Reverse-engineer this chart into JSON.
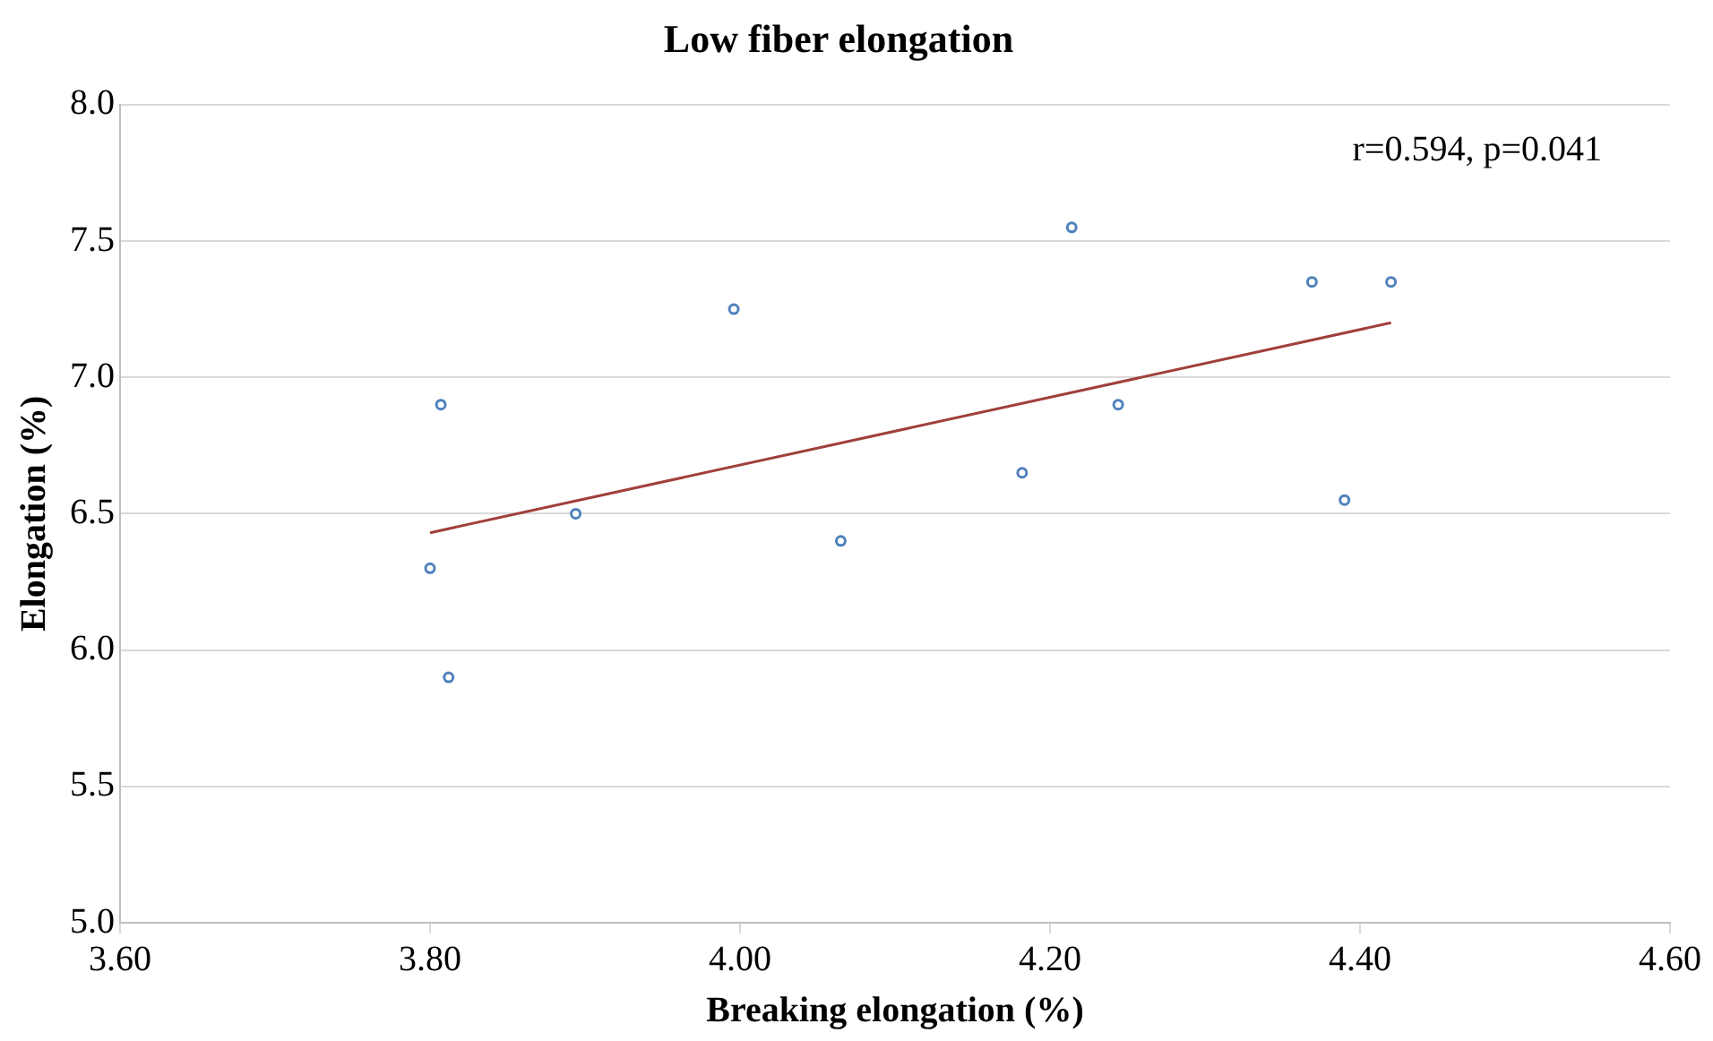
{
  "chart_data": {
    "type": "scatter",
    "title": "Low fiber elongation",
    "xlabel": "Breaking elongation (%)",
    "ylabel": "Elongation (%)",
    "annotations": [
      "r=0.594, p=0.041"
    ],
    "series": [
      {
        "type": "scatter",
        "color": "#4f81bd",
        "x": [
          3.8,
          3.807,
          3.812,
          3.894,
          3.996,
          4.065,
          4.182,
          4.214,
          4.244,
          4.369,
          4.39,
          4.42
        ],
        "values": [
          6.3,
          6.9,
          5.9,
          6.5,
          7.25,
          6.4,
          6.65,
          7.55,
          6.9,
          7.35,
          6.55,
          7.35
        ]
      },
      {
        "type": "line",
        "color": "#a0403c",
        "marker": "none",
        "x": [
          3.8,
          4.42
        ],
        "values": [
          6.43,
          7.2
        ]
      }
    ],
    "xlim": [
      3.6,
      4.6
    ],
    "xticks": [
      {
        "value": 3.6,
        "label": "3.60"
      },
      {
        "value": 3.8,
        "label": "3.80"
      },
      {
        "value": 4.0,
        "label": "4.00"
      },
      {
        "value": 4.2,
        "label": "4.20"
      },
      {
        "value": 4.4,
        "label": "4.40"
      },
      {
        "value": 4.6,
        "label": "4.60"
      }
    ],
    "ylim": [
      5,
      8
    ],
    "yticks": [
      {
        "value": 5,
        "label": "5.0"
      },
      {
        "value": 5.5,
        "label": "5.5"
      },
      {
        "value": 6,
        "label": "6.0"
      },
      {
        "value": 6.5,
        "label": "6.5"
      },
      {
        "value": 7,
        "label": "7.0"
      },
      {
        "value": 7.5,
        "label": "7.5"
      },
      {
        "value": 8,
        "label": "8.0"
      }
    ],
    "grid": "y",
    "legend": false,
    "marker": "circle"
  }
}
